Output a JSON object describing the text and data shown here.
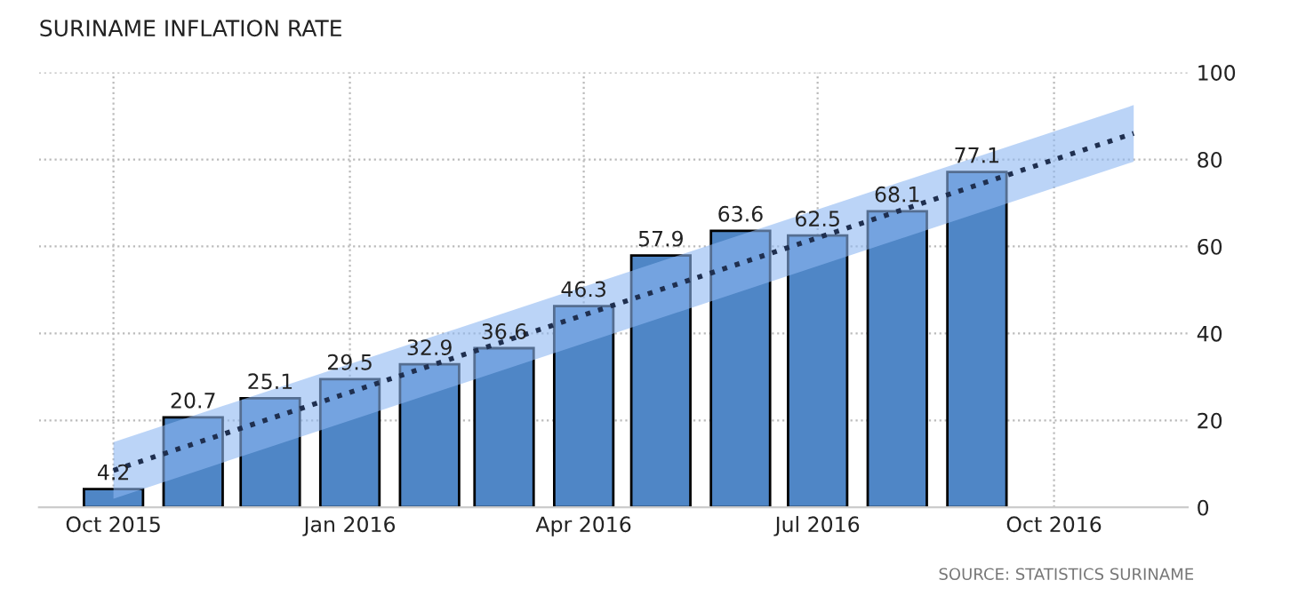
{
  "chart_data": {
    "type": "bar",
    "title": "SURINAME INFLATION RATE",
    "x": [
      "2015-10",
      "2015-11",
      "2015-12",
      "2016-01",
      "2016-02",
      "2016-03",
      "2016-04",
      "2016-05",
      "2016-06",
      "2016-07",
      "2016-08",
      "2016-09"
    ],
    "series": [
      {
        "color": "#4f86c6",
        "values": [
          4.2,
          20.7,
          25.1,
          29.5,
          32.9,
          36.6,
          46.3,
          57.9,
          63.6,
          62.5,
          68.1,
          77.1
        ],
        "value_labels": [
          "4.2",
          "20.7",
          "25.1",
          "29.5",
          "32.9",
          "36.6",
          "46.3",
          "57.9",
          "63.6",
          "62.5",
          "68.1",
          "77.1"
        ]
      },
      {
        "type": "line",
        "color": "#1f2f4f",
        "line_style": "dotted",
        "x": [
          "2015-10-01",
          "2016-11-01"
        ],
        "values": [
          8.5,
          86
        ],
        "lower": [
          2,
          79.5
        ],
        "upper": [
          15,
          92.5
        ]
      }
    ],
    "xlim": [
      "2015-09-02",
      "2016-11-22"
    ],
    "xticks": [
      {
        "value": "2015-10-01",
        "label": "Oct 2015"
      },
      {
        "value": "2016-01-01",
        "label": "Jan 2016"
      },
      {
        "value": "2016-04-01",
        "label": "Apr 2016"
      },
      {
        "value": "2016-07-01",
        "label": "Jul 2016"
      },
      {
        "value": "2016-10-01",
        "label": "Oct 2016"
      }
    ],
    "ylim": [
      0,
      100
    ],
    "yticks": [
      0,
      20,
      40,
      60,
      80,
      100
    ],
    "grid": true,
    "annotations": [
      "SOURCE: STATISTICS SURINAME"
    ]
  }
}
